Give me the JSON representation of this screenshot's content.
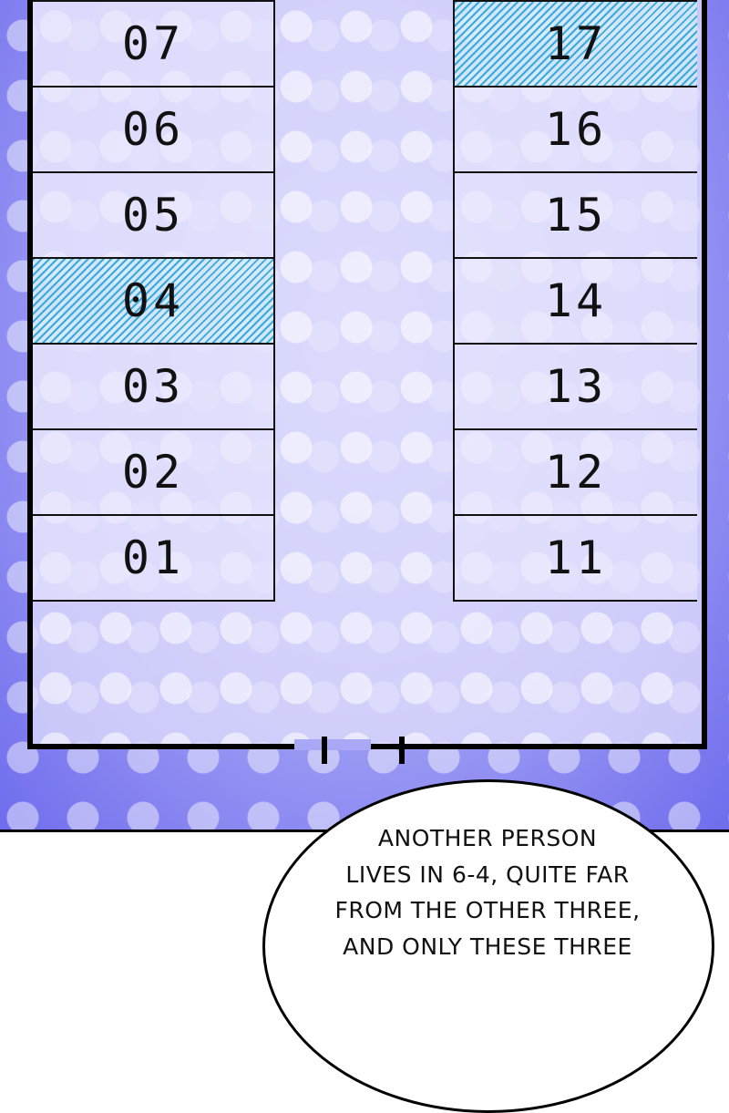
{
  "left_column": {
    "rooms": [
      {
        "number": "07",
        "highlighted": false
      },
      {
        "number": "06",
        "highlighted": false
      },
      {
        "number": "05",
        "highlighted": false
      },
      {
        "number": "04",
        "highlighted": true
      },
      {
        "number": "03",
        "highlighted": false
      },
      {
        "number": "02",
        "highlighted": false
      },
      {
        "number": "01",
        "highlighted": false
      }
    ]
  },
  "right_column": {
    "rooms": [
      {
        "number": "17",
        "highlighted": true
      },
      {
        "number": "16",
        "highlighted": false
      },
      {
        "number": "15",
        "highlighted": false
      },
      {
        "number": "14",
        "highlighted": false
      },
      {
        "number": "13",
        "highlighted": false
      },
      {
        "number": "12",
        "highlighted": false
      },
      {
        "number": "11",
        "highlighted": false
      }
    ]
  },
  "bubble": {
    "lines": [
      "ANOTHER PERSON",
      "LIVES IN 6-4, QUITE FAR",
      "FROM THE OTHER THREE,",
      "AND ONLY THESE THREE"
    ]
  },
  "colors": {
    "background": "#6f6ced",
    "interior": "#e1e0fc",
    "highlight_hatch": "#3aa9dc"
  }
}
